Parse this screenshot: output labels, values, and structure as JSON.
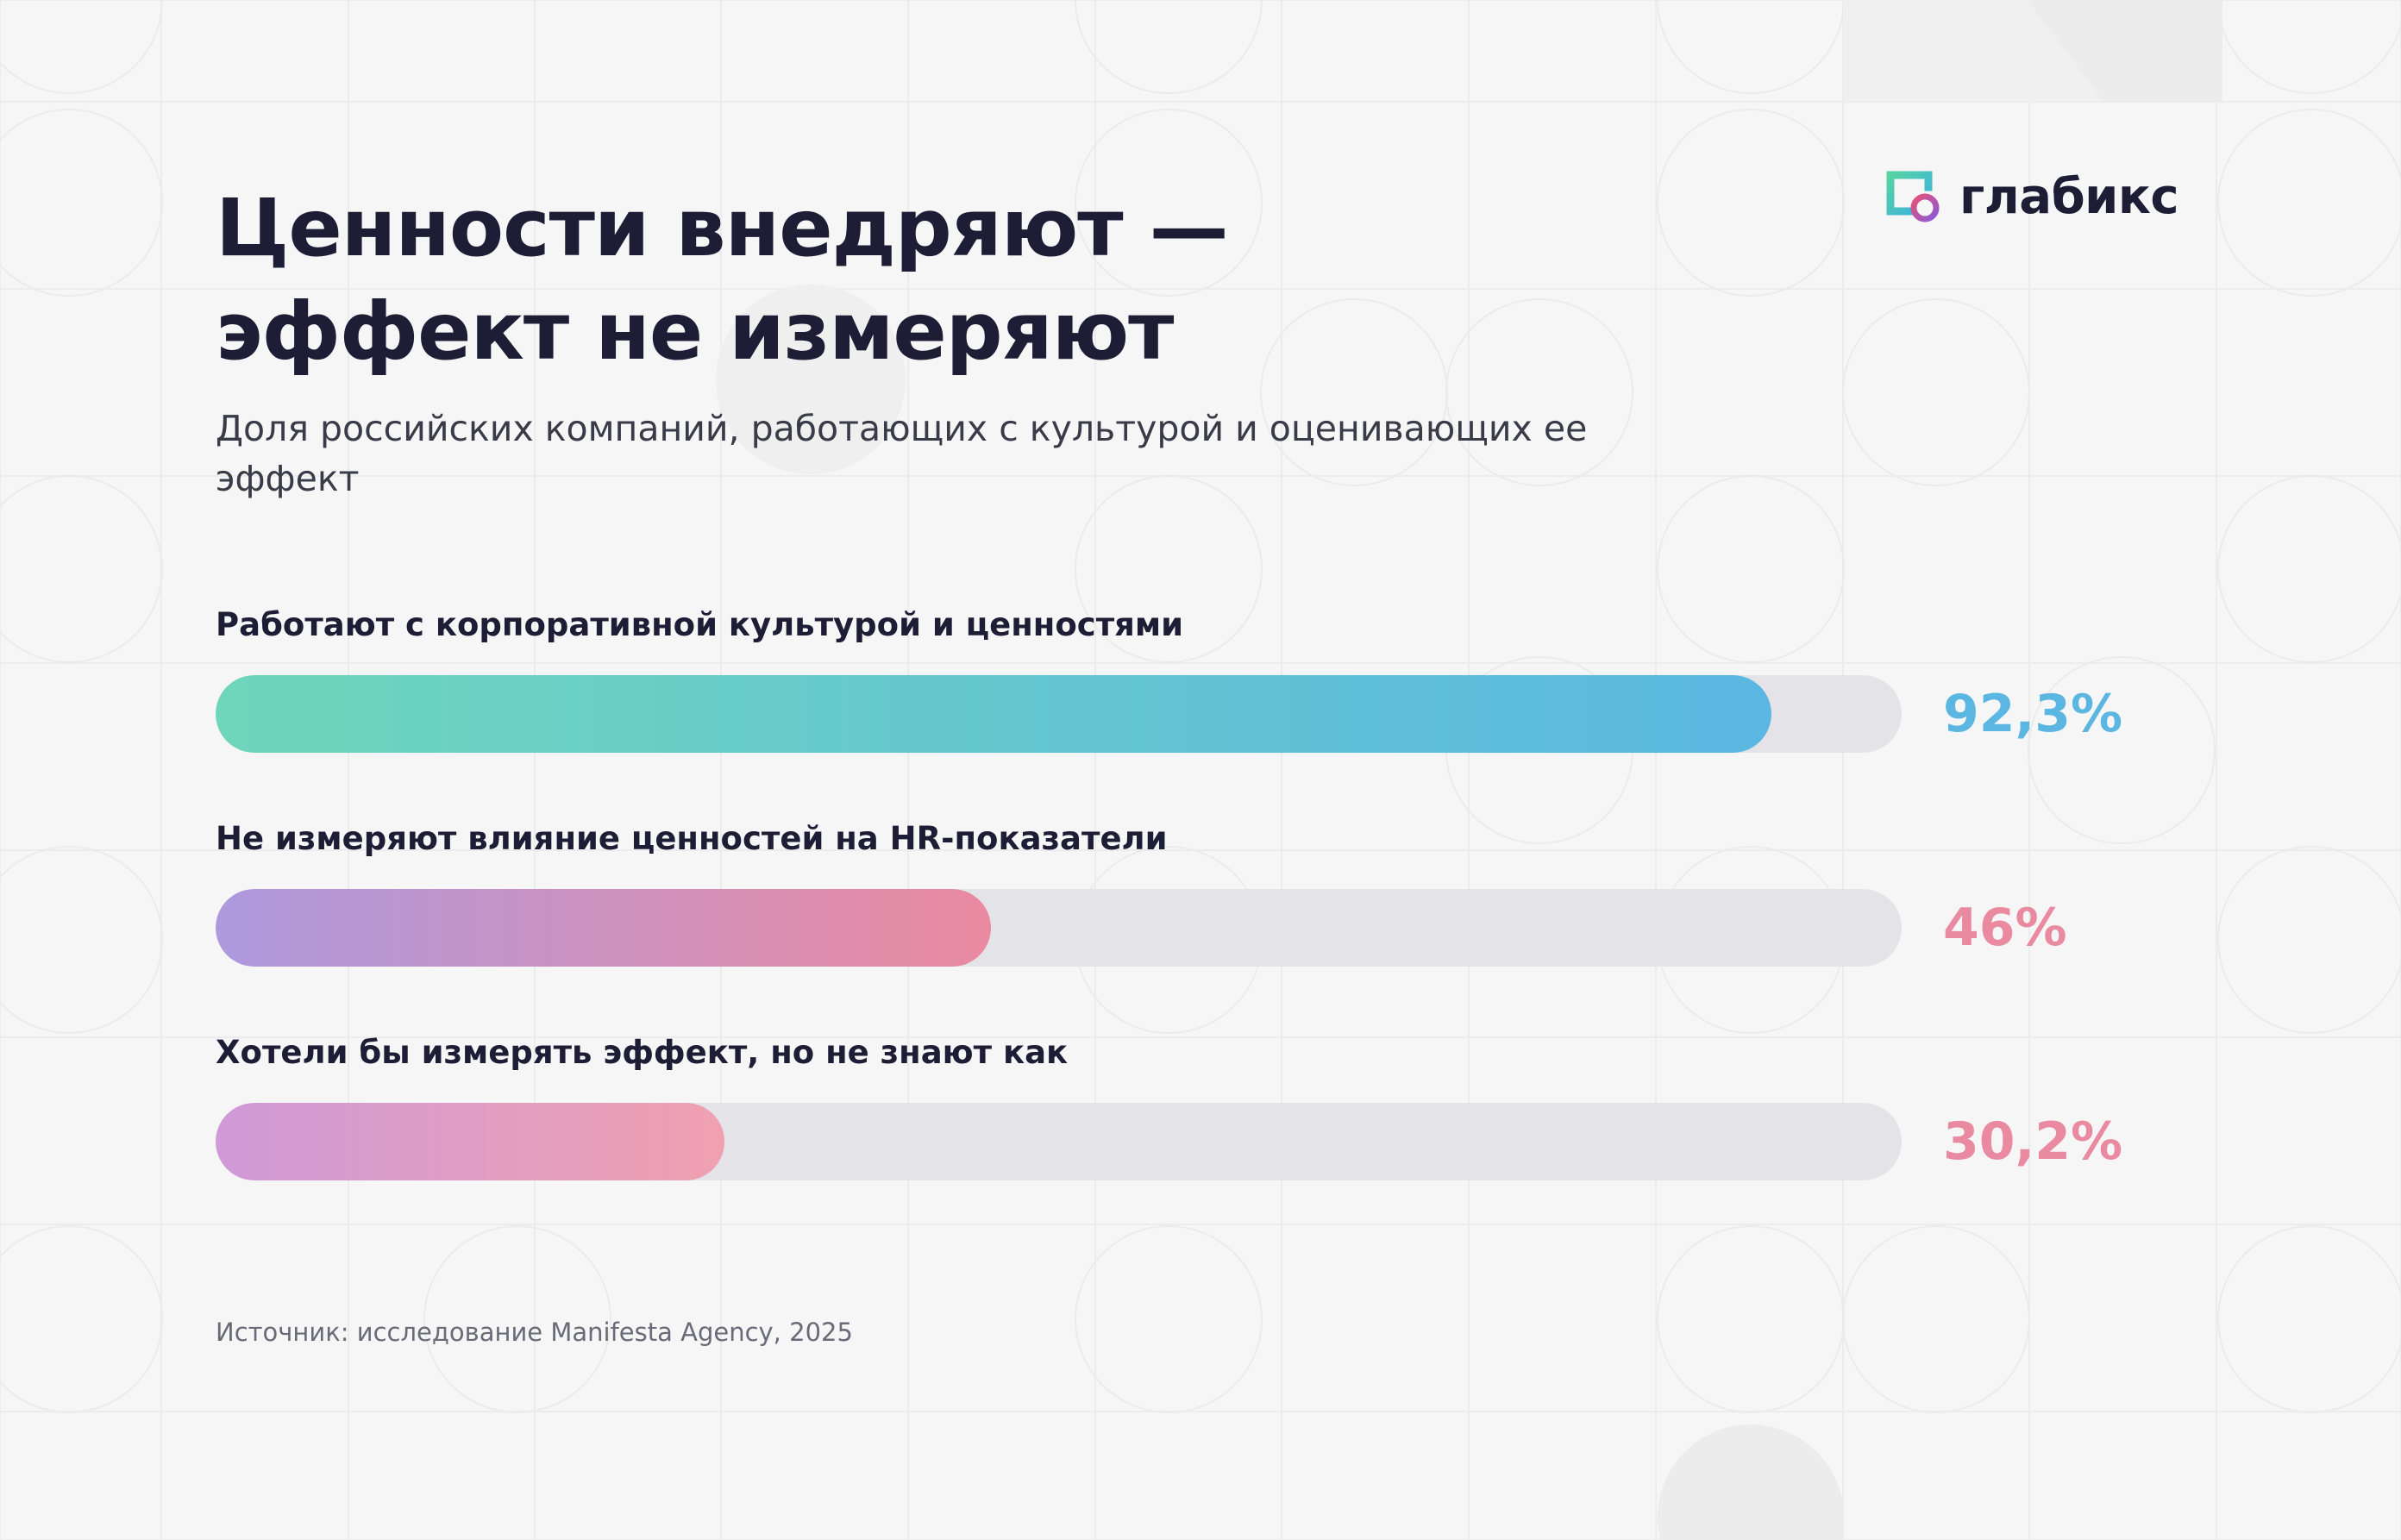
{
  "title_lines": [
    "Ценности внедряют —",
    "эффект не измеряют"
  ],
  "subtitle": "Доля российских компаний, работающих с культурой и оценивающих ее эффект",
  "logo": {
    "text": "глабикс",
    "icon": "glabiks-logo-icon"
  },
  "source": "Источник: исследование Manifesta Agency, 2025",
  "chart_data": {
    "type": "bar",
    "orientation": "horizontal",
    "xlim": [
      0,
      100
    ],
    "unit": "%",
    "categories": [
      "Работают с корпоративной культурой и ценностями",
      "Не измеряют влияние ценностей на HR-показатели",
      "Хотели бы измерять эффект, но не знают как"
    ],
    "values": [
      92.3,
      46,
      30.2
    ],
    "value_labels": [
      "92,3%",
      "46%",
      "30,2%"
    ],
    "colors": [
      {
        "from": "#6fd6bb",
        "to": "#5bb7e2",
        "label": "#5bb7e2"
      },
      {
        "from": "#ad99dd",
        "to": "#ea8aa0",
        "label": "#ea8aa0"
      },
      {
        "from": "#cf9ad7",
        "to": "#f0a0b0",
        "label": "#ea8aa0"
      }
    ],
    "track_color": "#e4e4e8",
    "grid": false,
    "legend": "none"
  }
}
